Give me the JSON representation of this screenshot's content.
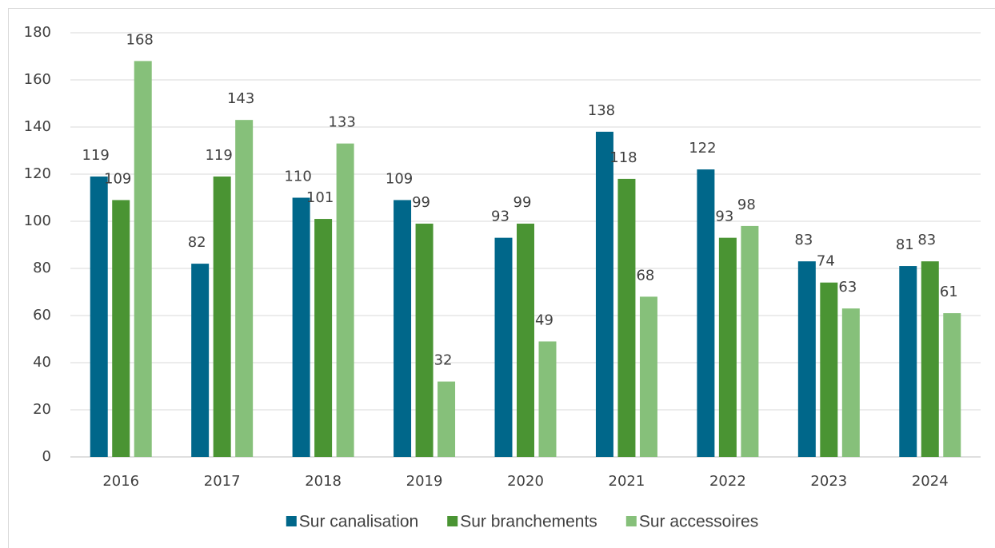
{
  "chart_data": {
    "type": "bar",
    "categories": [
      "2016",
      "2017",
      "2018",
      "2019",
      "2020",
      "2021",
      "2022",
      "2023",
      "2024"
    ],
    "series": [
      {
        "name": "Sur canalisation",
        "color": "#00678a",
        "values": [
          119,
          82,
          110,
          109,
          93,
          138,
          122,
          83,
          81
        ]
      },
      {
        "name": "Sur branchements",
        "color": "#4a9433",
        "values": [
          109,
          119,
          101,
          99,
          99,
          118,
          93,
          74,
          83
        ]
      },
      {
        "name": "Sur accessoires",
        "color": "#86c07a",
        "values": [
          168,
          143,
          133,
          32,
          49,
          68,
          98,
          63,
          61
        ]
      }
    ],
    "ylim": [
      0,
      180
    ],
    "yticks": [
      0,
      20,
      40,
      60,
      80,
      100,
      120,
      140,
      160,
      180
    ],
    "grid": true,
    "legend": "bottom"
  }
}
